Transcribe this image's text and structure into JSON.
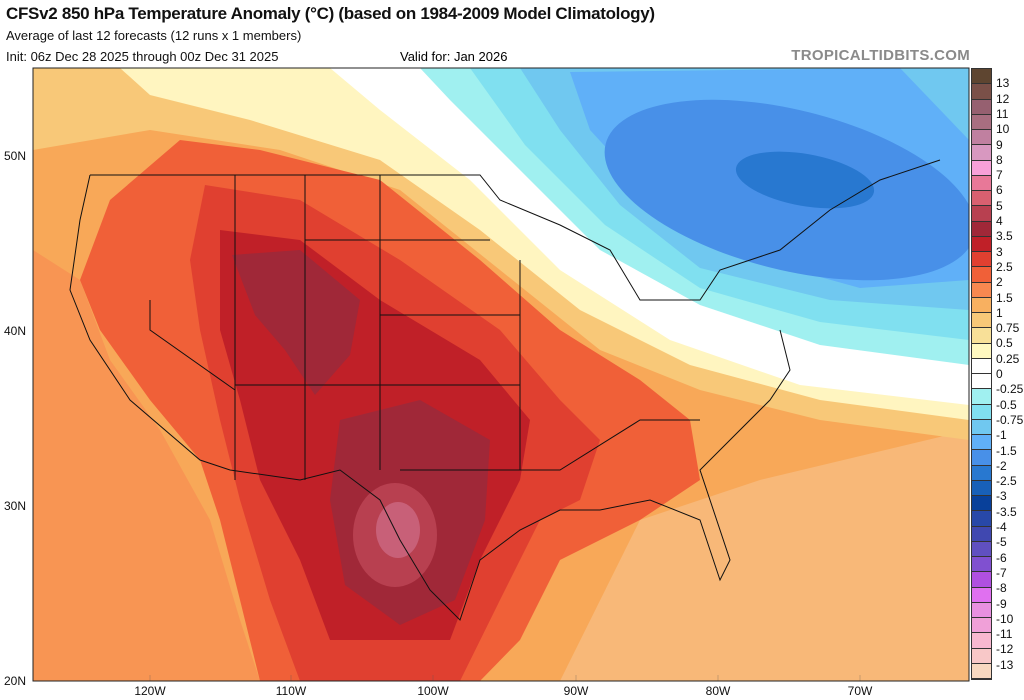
{
  "header": {
    "title": "CFSv2 850 hPa Temperature Anomaly (°C) (based on 1984-2009 Model Climatology)",
    "subtitle": "Average of last 12 forecasts (12 runs x 1 members)",
    "init": "Init: 06z Dec 28 2025 through 00z Dec 31 2025",
    "valid": "Valid for: Jan 2026",
    "watermark": "TROPICALTIDBITS.COM"
  },
  "axes": {
    "lat_labels": [
      "50N",
      "40N",
      "30N",
      "20N"
    ],
    "lon_labels": [
      "120W",
      "110W",
      "100W",
      "90W",
      "80W",
      "70W"
    ]
  },
  "colorbar": {
    "labels": [
      "13",
      "12",
      "11",
      "10",
      "9",
      "8",
      "7",
      "6",
      "5",
      "4",
      "3.5",
      "3",
      "2.5",
      "2",
      "1.5",
      "1",
      "0.75",
      "0.5",
      "0.25",
      "0",
      "-0.25",
      "-0.5",
      "-0.75",
      "-1",
      "-1.5",
      "-2",
      "-2.5",
      "-3",
      "-3.5",
      "-4",
      "-5",
      "-6",
      "-7",
      "-8",
      "-9",
      "-10",
      "-11",
      "-12",
      "-13"
    ],
    "colors": [
      "#5e4530",
      "#7a5048",
      "#966070",
      "#a86e80",
      "#c080a0",
      "#d898c0",
      "#f8a0d8",
      "#e87898",
      "#d86070",
      "#b84050",
      "#a02838",
      "#c02028",
      "#e04030",
      "#f06038",
      "#f88850",
      "#f8b060",
      "#f8c878",
      "#f8e098",
      "#fff8c0",
      "#ffffff",
      "#ffffff",
      "#a0f0f0",
      "#80e0f0",
      "#70c8f0",
      "#60b0f8",
      "#4890e8",
      "#2878d0",
      "#1860b8",
      "#08409a",
      "#2848a8",
      "#4048b0",
      "#6050c0",
      "#8050d0",
      "#b050e0",
      "#e070f0",
      "#e890e0",
      "#f0a0d8",
      "#f8b8d0",
      "#f8c8c8",
      "#f8d8c0"
    ]
  }
}
